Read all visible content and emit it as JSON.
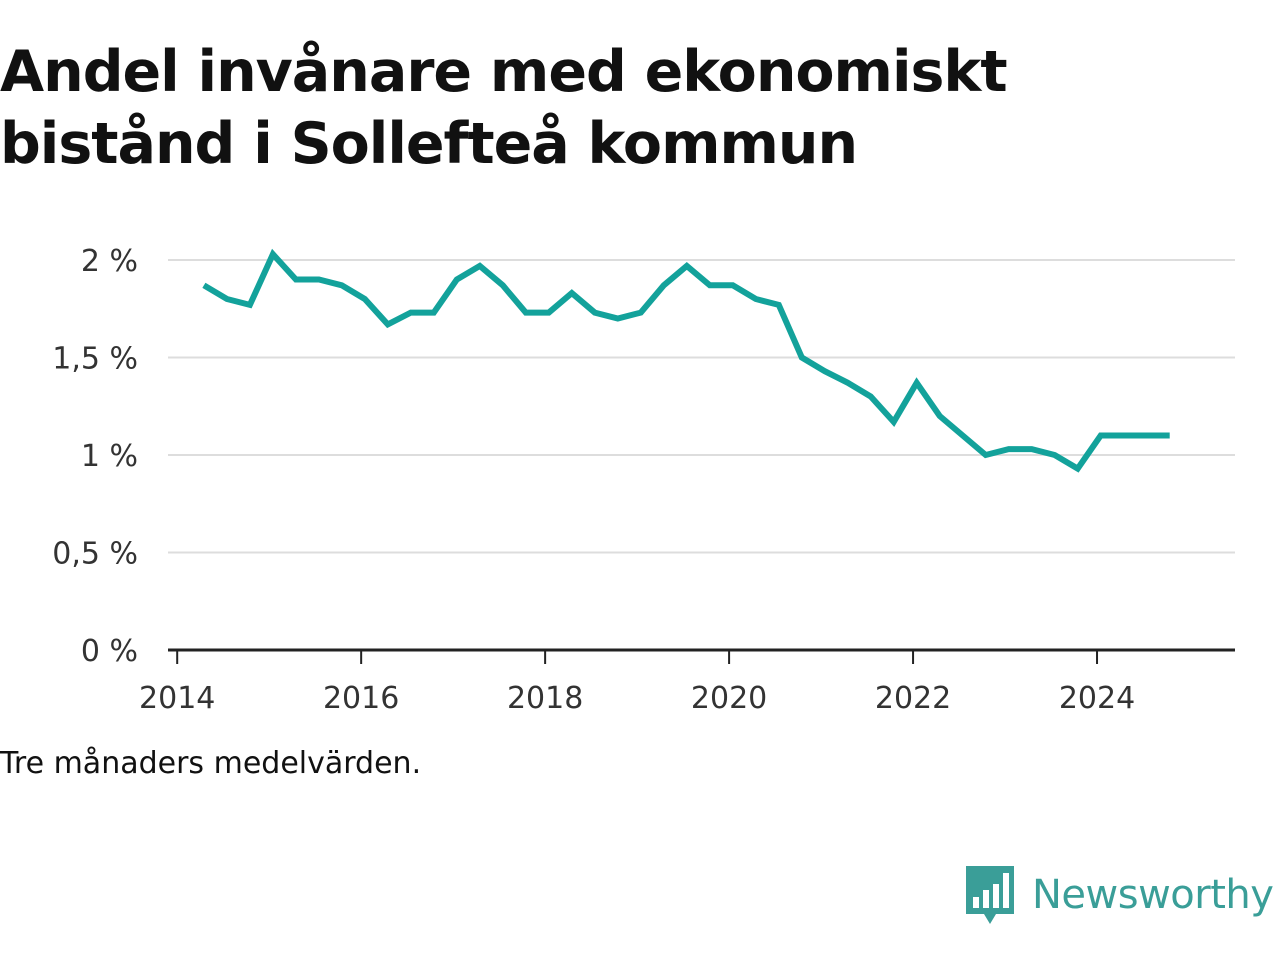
{
  "title": "Andel invånare med ekonomiskt bistånd i Sollefteå kommun",
  "note": "Tre månaders medelvärden.",
  "brand": {
    "name": "Newsworthy",
    "logo_icon": "newsworthy-chart-logo-icon",
    "color": "#3a9e98"
  },
  "chart_data": {
    "type": "line",
    "title": "Andel invånare med ekonomiskt bistånd i Sollefteå kommun",
    "xlabel": "",
    "ylabel": "",
    "xlim": [
      2013.9,
      2025.5
    ],
    "ylim": [
      0,
      2
    ],
    "grid": true,
    "line_color": "#13a29b",
    "x_ticks": [
      {
        "value": 2014,
        "label": "2014"
      },
      {
        "value": 2016,
        "label": "2016"
      },
      {
        "value": 2018,
        "label": "2018"
      },
      {
        "value": 2020,
        "label": "2020"
      },
      {
        "value": 2022,
        "label": "2022"
      },
      {
        "value": 2024,
        "label": "2024"
      }
    ],
    "y_ticks": [
      {
        "value": 0,
        "label": "0 %"
      },
      {
        "value": 0.5,
        "label": "0,5 %"
      },
      {
        "value": 1,
        "label": "1 %"
      },
      {
        "value": 1.5,
        "label": "1,5 %"
      },
      {
        "value": 2,
        "label": "2 %"
      }
    ],
    "series": [
      {
        "x": [
          2014.29,
          2014.54,
          2014.79,
          2015.04,
          2015.29,
          2015.54,
          2015.79,
          2016.04,
          2016.29,
          2016.54,
          2016.79,
          2017.04,
          2017.29,
          2017.54,
          2017.79,
          2018.04,
          2018.29,
          2018.54,
          2018.79,
          2019.04,
          2019.29,
          2019.54,
          2019.79,
          2020.04,
          2020.29,
          2020.54,
          2020.79,
          2021.04,
          2021.29,
          2021.54,
          2021.79,
          2022.04,
          2022.29,
          2022.54,
          2022.79,
          2023.04,
          2023.29,
          2023.54,
          2023.79,
          2024.04,
          2024.29,
          2024.54,
          2024.79
        ],
        "values": [
          1.87,
          1.8,
          1.77,
          2.03,
          1.9,
          1.9,
          1.87,
          1.8,
          1.67,
          1.73,
          1.73,
          1.9,
          1.97,
          1.87,
          1.73,
          1.73,
          1.83,
          1.73,
          1.7,
          1.73,
          1.87,
          1.97,
          1.87,
          1.87,
          1.8,
          1.77,
          1.5,
          1.43,
          1.37,
          1.3,
          1.17,
          1.37,
          1.2,
          1.1,
          1.0,
          1.03,
          1.03,
          1.0,
          0.93,
          1.1,
          1.1,
          1.1,
          1.1
        ]
      }
    ]
  }
}
